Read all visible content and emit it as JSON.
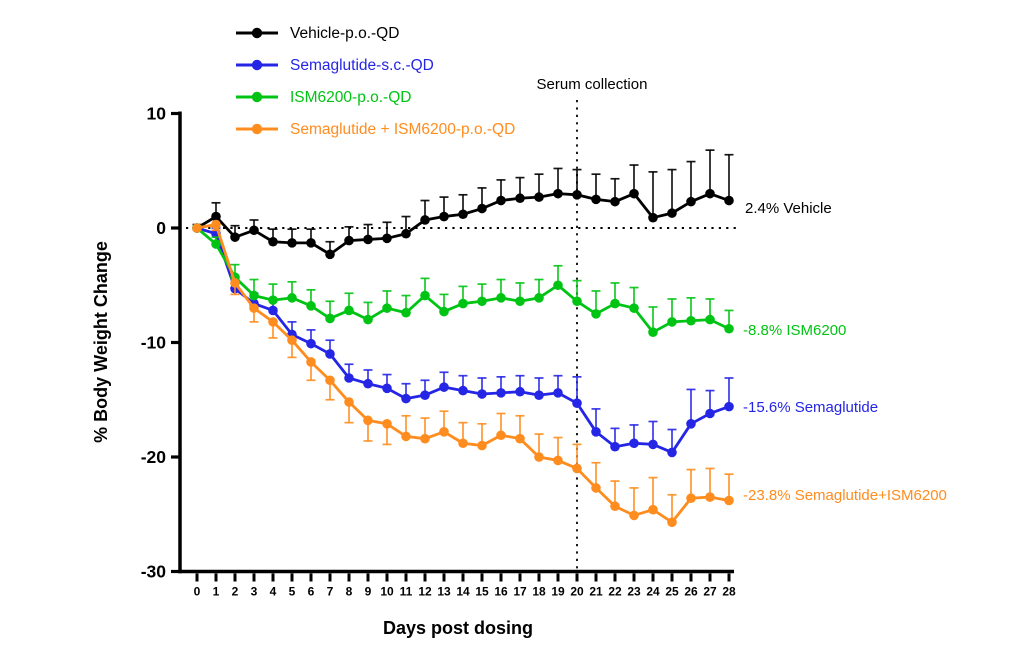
{
  "chart_data": {
    "type": "line",
    "title": "",
    "xlabel": "Days post dosing",
    "ylabel": "% Body Weight Change",
    "x": [
      0,
      1,
      2,
      3,
      4,
      5,
      6,
      7,
      8,
      9,
      10,
      11,
      12,
      13,
      14,
      15,
      16,
      17,
      18,
      19,
      20,
      21,
      22,
      23,
      24,
      25,
      26,
      27,
      28
    ],
    "xtick_labels": [
      "0",
      "1",
      "2",
      "3",
      "4",
      "5",
      "6",
      "7",
      "8",
      "9",
      "10",
      "11",
      "12",
      "13",
      "14",
      "15",
      "16",
      "17",
      "18",
      "19",
      "20",
      "21",
      "22",
      "23",
      "24",
      "25",
      "26",
      "27",
      "28"
    ],
    "yticks": [
      10,
      0,
      -10,
      -20,
      -30
    ],
    "ytick_labels": [
      "10",
      "0",
      "-10",
      "-20",
      "-30"
    ],
    "ylim": [
      -30,
      10
    ],
    "xlim": [
      0,
      28
    ],
    "grid": false,
    "legend_position": "top-left",
    "annotations": {
      "serum_collection": {
        "label": "Serum collection",
        "x": 20
      },
      "zero_dotted_line_y": 0
    },
    "series": [
      {
        "name": "Vehicle-p.o.-QD",
        "color": "#000000",
        "end_label": "2.4% Vehicle",
        "error_dir": "up",
        "error_down_before_day": null,
        "values": [
          0,
          1.0,
          -0.8,
          -0.2,
          -1.2,
          -1.3,
          -1.3,
          -2.3,
          -1.1,
          -1.0,
          -0.9,
          -0.5,
          0.7,
          1.0,
          1.2,
          1.7,
          2.4,
          2.6,
          2.7,
          3.0,
          2.9,
          2.5,
          2.3,
          3.0,
          0.9,
          1.3,
          2.3,
          3.0,
          2.4
        ],
        "errors": [
          0.3,
          1.2,
          1.0,
          0.9,
          1.1,
          1.2,
          1.2,
          1.1,
          1.2,
          1.3,
          1.4,
          1.5,
          1.7,
          1.7,
          1.7,
          1.8,
          1.8,
          1.8,
          2.0,
          2.2,
          2.2,
          2.2,
          2.0,
          2.5,
          4.0,
          3.8,
          3.5,
          3.8,
          4.0
        ]
      },
      {
        "name": "Semaglutide-s.c.-QD",
        "color": "#2525e6",
        "end_label": "-15.6% Semaglutide",
        "error_dir": "up",
        "error_down_before_day": null,
        "values": [
          0,
          -0.5,
          -5.3,
          -6.6,
          -7.2,
          -9.3,
          -10.1,
          -11.0,
          -13.1,
          -13.6,
          -14.0,
          -14.9,
          -14.6,
          -13.9,
          -14.2,
          -14.5,
          -14.4,
          -14.3,
          -14.6,
          -14.4,
          -15.3,
          -17.8,
          -19.1,
          -18.8,
          -18.9,
          -19.6,
          -17.1,
          -16.2,
          -15.6
        ],
        "errors": [
          0.2,
          0.5,
          0.8,
          0.9,
          1.0,
          1.1,
          1.2,
          1.2,
          1.2,
          1.2,
          1.2,
          1.3,
          1.3,
          1.3,
          1.3,
          1.4,
          1.4,
          1.4,
          1.5,
          1.5,
          2.3,
          2.0,
          1.6,
          1.6,
          2.0,
          2.0,
          3.0,
          2.0,
          2.5
        ]
      },
      {
        "name": "ISM6200-p.o.-QD",
        "color": "#00c414",
        "end_label": "-8.8% ISM6200",
        "error_dir": "up",
        "error_down_before_day": null,
        "values": [
          0,
          -1.4,
          -4.3,
          -5.9,
          -6.3,
          -6.1,
          -6.8,
          -7.9,
          -7.2,
          -8.0,
          -7.0,
          -7.4,
          -5.9,
          -7.3,
          -6.6,
          -6.4,
          -6.1,
          -6.4,
          -6.1,
          -5.0,
          -6.4,
          -7.5,
          -6.6,
          -7.0,
          -9.1,
          -8.2,
          -8.1,
          -8.0,
          -8.8
        ],
        "errors": [
          0.2,
          0.6,
          1.1,
          1.4,
          1.4,
          1.4,
          1.4,
          1.5,
          1.5,
          1.5,
          1.5,
          1.5,
          1.5,
          1.5,
          1.5,
          1.5,
          1.6,
          1.6,
          1.6,
          1.7,
          1.8,
          2.0,
          1.8,
          1.8,
          2.2,
          2.0,
          2.0,
          1.8,
          1.6
        ]
      },
      {
        "name": "Semaglutide + ISM6200-p.o.-QD",
        "color": "#ff8c1e",
        "end_label": "-23.8% Semaglutide+ISM6200",
        "error_dir": "up",
        "error_down_before_day": 11,
        "values": [
          0,
          0.3,
          -4.8,
          -7.0,
          -8.2,
          -9.8,
          -11.7,
          -13.3,
          -15.2,
          -16.8,
          -17.1,
          -18.2,
          -18.4,
          -17.8,
          -18.8,
          -19.0,
          -18.1,
          -18.4,
          -20.0,
          -20.3,
          -21.0,
          -22.7,
          -24.3,
          -25.1,
          -24.6,
          -25.7,
          -23.6,
          -23.5,
          -23.8
        ],
        "errors": [
          0.2,
          0.5,
          1.0,
          1.2,
          1.4,
          1.5,
          1.6,
          1.7,
          1.8,
          1.8,
          1.8,
          1.8,
          1.8,
          1.8,
          1.8,
          1.9,
          1.9,
          2.0,
          2.0,
          2.0,
          2.1,
          2.2,
          2.2,
          2.4,
          2.8,
          2.4,
          2.5,
          2.5,
          2.3
        ]
      }
    ]
  }
}
